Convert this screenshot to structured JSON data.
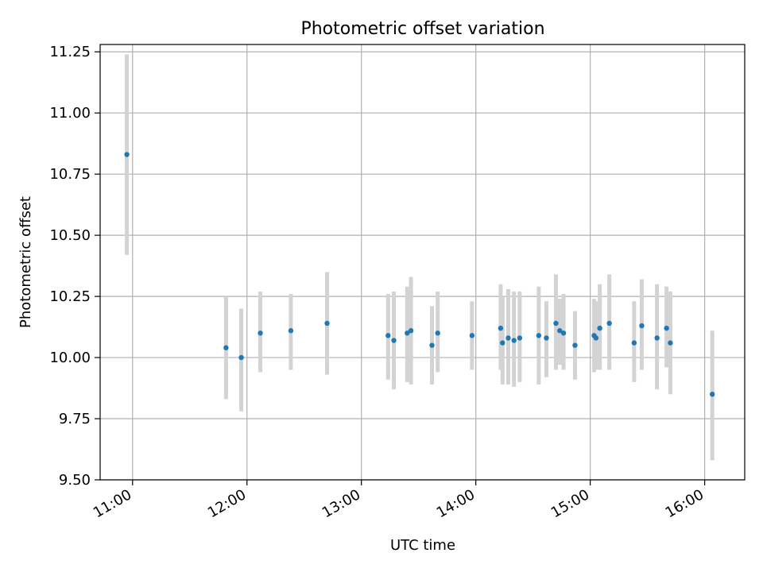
{
  "chart_data": {
    "type": "scatter",
    "title": "Photometric offset variation",
    "xlabel": "UTC time",
    "ylabel": "Photometric offset",
    "x_axis": "time (UTC)",
    "xlim": [
      "10:43",
      "16:21"
    ],
    "ylim": [
      9.5,
      11.28
    ],
    "x_ticks": [
      "11:00",
      "12:00",
      "13:00",
      "14:00",
      "15:00",
      "16:00"
    ],
    "y_ticks": [
      "9.50",
      "9.75",
      "10.00",
      "10.25",
      "10.50",
      "10.75",
      "11.00",
      "11.25"
    ],
    "grid": true,
    "legend": "none",
    "colors": {
      "points": "#1f77b4",
      "error_bars": "#d3d3d3",
      "grid": "#b0b0b0"
    },
    "points": [
      {
        "x": "10:57",
        "y": 10.83,
        "ylow": 10.42,
        "yhigh": 11.24
      },
      {
        "x": "11:49",
        "y": 10.04,
        "ylow": 9.83,
        "yhigh": 10.25
      },
      {
        "x": "11:57",
        "y": 10.0,
        "ylow": 9.78,
        "yhigh": 10.2
      },
      {
        "x": "12:07",
        "y": 10.1,
        "ylow": 9.94,
        "yhigh": 10.27
      },
      {
        "x": "12:23",
        "y": 10.11,
        "ylow": 9.95,
        "yhigh": 10.26
      },
      {
        "x": "12:42",
        "y": 10.14,
        "ylow": 9.93,
        "yhigh": 10.35
      },
      {
        "x": "13:14",
        "y": 10.09,
        "ylow": 9.91,
        "yhigh": 10.26
      },
      {
        "x": "13:17",
        "y": 10.07,
        "ylow": 9.87,
        "yhigh": 10.27
      },
      {
        "x": "13:24",
        "y": 10.1,
        "ylow": 9.9,
        "yhigh": 10.29
      },
      {
        "x": "13:26",
        "y": 10.11,
        "ylow": 9.89,
        "yhigh": 10.33
      },
      {
        "x": "13:37",
        "y": 10.05,
        "ylow": 9.89,
        "yhigh": 10.21
      },
      {
        "x": "13:40",
        "y": 10.1,
        "ylow": 9.94,
        "yhigh": 10.27
      },
      {
        "x": "13:58",
        "y": 10.09,
        "ylow": 9.95,
        "yhigh": 10.23
      },
      {
        "x": "14:13",
        "y": 10.12,
        "ylow": 9.95,
        "yhigh": 10.3
      },
      {
        "x": "14:14",
        "y": 10.06,
        "ylow": 9.89,
        "yhigh": 10.25
      },
      {
        "x": "14:17",
        "y": 10.08,
        "ylow": 9.89,
        "yhigh": 10.28
      },
      {
        "x": "14:20",
        "y": 10.07,
        "ylow": 9.88,
        "yhigh": 10.27
      },
      {
        "x": "14:23",
        "y": 10.08,
        "ylow": 9.9,
        "yhigh": 10.27
      },
      {
        "x": "14:33",
        "y": 10.09,
        "ylow": 9.89,
        "yhigh": 10.29
      },
      {
        "x": "14:37",
        "y": 10.08,
        "ylow": 9.92,
        "yhigh": 10.23
      },
      {
        "x": "14:42",
        "y": 10.14,
        "ylow": 9.95,
        "yhigh": 10.34
      },
      {
        "x": "14:44",
        "y": 10.11,
        "ylow": 9.97,
        "yhigh": 10.24
      },
      {
        "x": "14:46",
        "y": 10.1,
        "ylow": 9.95,
        "yhigh": 10.26
      },
      {
        "x": "14:52",
        "y": 10.05,
        "ylow": 9.91,
        "yhigh": 10.19
      },
      {
        "x": "15:02",
        "y": 10.09,
        "ylow": 9.94,
        "yhigh": 10.24
      },
      {
        "x": "15:03",
        "y": 10.08,
        "ylow": 9.95,
        "yhigh": 10.23
      },
      {
        "x": "15:05",
        "y": 10.12,
        "ylow": 9.95,
        "yhigh": 10.3
      },
      {
        "x": "15:10",
        "y": 10.14,
        "ylow": 9.95,
        "yhigh": 10.34
      },
      {
        "x": "15:23",
        "y": 10.06,
        "ylow": 9.9,
        "yhigh": 10.23
      },
      {
        "x": "15:27",
        "y": 10.13,
        "ylow": 9.95,
        "yhigh": 10.32
      },
      {
        "x": "15:35",
        "y": 10.08,
        "ylow": 9.87,
        "yhigh": 10.3
      },
      {
        "x": "15:40",
        "y": 10.12,
        "ylow": 9.96,
        "yhigh": 10.29
      },
      {
        "x": "15:42",
        "y": 10.06,
        "ylow": 9.85,
        "yhigh": 10.27
      },
      {
        "x": "16:04",
        "y": 9.85,
        "ylow": 9.58,
        "yhigh": 10.11
      }
    ]
  }
}
